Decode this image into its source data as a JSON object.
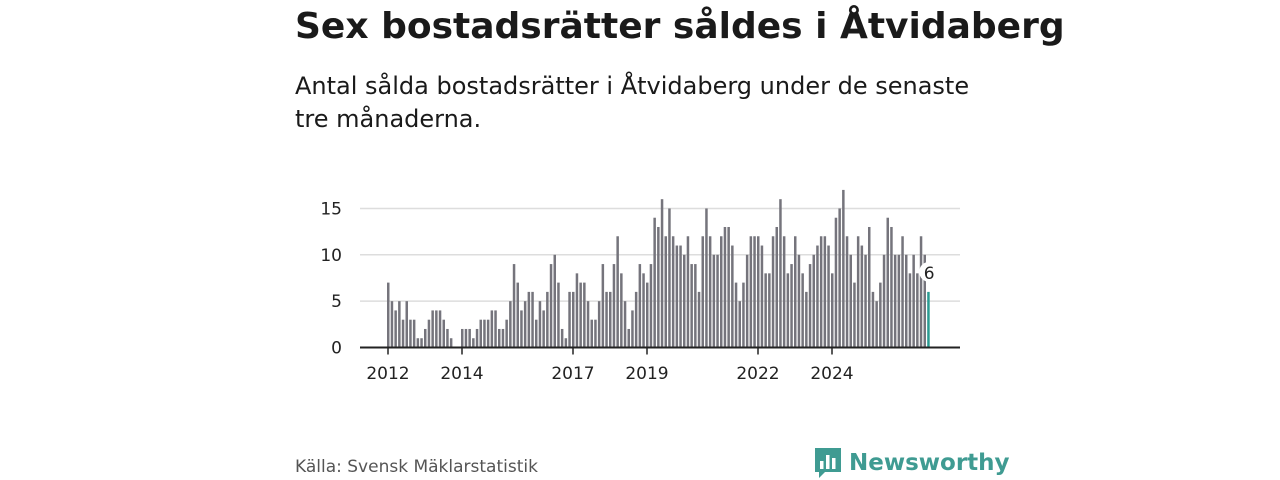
{
  "header": {
    "title": "Sex bostadsrätter såldes i Åtvidaberg",
    "subtitle": "Antal sålda bostadsrätter i Åtvidaberg under de senaste tre månaderna."
  },
  "footer": {
    "source": "Källa: Svensk Mäklarstatistik",
    "logo_text": "Newsworthy"
  },
  "colors": {
    "bar": "#75747c",
    "highlight": "#2a9b92",
    "grid": "#dddddd",
    "axis": "#222222",
    "brand": "#3f9b92"
  },
  "chart_data": {
    "type": "bar",
    "title": "Antal sålda bostadsrätter i Åtvidaberg",
    "xlabel": "",
    "ylabel": "",
    "ylim": [
      0,
      17
    ],
    "yticks": [
      0,
      5,
      10,
      15
    ],
    "xticks": [
      {
        "label": "2012",
        "index": 0
      },
      {
        "label": "2014",
        "index": 20
      },
      {
        "label": "2017",
        "index": 50
      },
      {
        "label": "2019",
        "index": 70
      },
      {
        "label": "2022",
        "index": 100
      },
      {
        "label": "2024",
        "index": 120
      }
    ],
    "values": [
      7,
      5,
      4,
      5,
      3,
      5,
      3,
      3,
      1,
      1,
      2,
      3,
      4,
      4,
      4,
      3,
      2,
      1,
      0,
      0,
      2,
      2,
      2,
      1,
      2,
      3,
      3,
      3,
      4,
      4,
      2,
      2,
      3,
      5,
      9,
      7,
      4,
      5,
      6,
      6,
      3,
      5,
      4,
      6,
      9,
      10,
      7,
      2,
      1,
      6,
      6,
      8,
      7,
      7,
      5,
      3,
      3,
      5,
      9,
      6,
      6,
      9,
      12,
      8,
      5,
      2,
      4,
      6,
      9,
      8,
      7,
      9,
      14,
      13,
      16,
      12,
      15,
      12,
      11,
      11,
      10,
      12,
      9,
      9,
      6,
      12,
      15,
      12,
      10,
      10,
      12,
      13,
      13,
      11,
      7,
      5,
      7,
      10,
      12,
      12,
      12,
      11,
      8,
      8,
      12,
      13,
      16,
      12,
      8,
      9,
      12,
      10,
      8,
      6,
      9,
      10,
      11,
      12,
      12,
      11,
      8,
      14,
      15,
      17,
      12,
      10,
      7,
      12,
      11,
      10,
      13,
      6,
      5,
      7,
      10,
      14,
      13,
      10,
      10,
      12,
      10,
      8,
      10,
      8,
      12,
      10,
      6
    ],
    "highlight_index": 146,
    "highlight_label": "6"
  }
}
